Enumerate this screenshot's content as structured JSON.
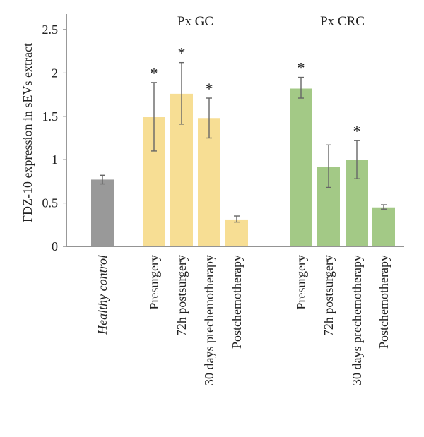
{
  "chart_data": {
    "type": "bar",
    "ylabel": "FDZ-10 expression in sEVs extract",
    "ylim": [
      0,
      2.5
    ],
    "yticks": [
      "0",
      "0.5",
      "1",
      "1.5",
      "2",
      "2.5"
    ],
    "grid": false,
    "groups": [
      {
        "label": "",
        "start": 0,
        "end": 0
      },
      {
        "label": "Px GC",
        "start": 1,
        "end": 4
      },
      {
        "label": "Px CRC",
        "start": 5,
        "end": 8
      }
    ],
    "categories": [
      "Healthy control",
      "Presurgery",
      "72h postsurgery",
      "30 days prechemotherapy",
      "Postchemotherapy",
      "Presurgery",
      "72h postsurgery",
      "30 days prechemotherapy",
      "Postchemotherapy"
    ],
    "italic_categories": [
      0
    ],
    "values": [
      0.77,
      1.49,
      1.76,
      1.48,
      0.31,
      1.82,
      0.92,
      1.0,
      0.45
    ],
    "error_low": [
      0.72,
      1.1,
      1.41,
      1.25,
      0.28,
      1.71,
      0.68,
      0.78,
      0.43
    ],
    "error_high": [
      0.82,
      1.89,
      2.12,
      1.71,
      0.35,
      1.95,
      1.17,
      1.22,
      0.48
    ],
    "significant": [
      false,
      true,
      true,
      true,
      false,
      true,
      false,
      true,
      false
    ],
    "significance_marker": "*",
    "colors": [
      "#999999",
      "#f7de94",
      "#f7de94",
      "#f7de94",
      "#f7de94",
      "#a3c986",
      "#a3c986",
      "#a3c986",
      "#a3c986"
    ],
    "error_bar_color": "#666666"
  }
}
